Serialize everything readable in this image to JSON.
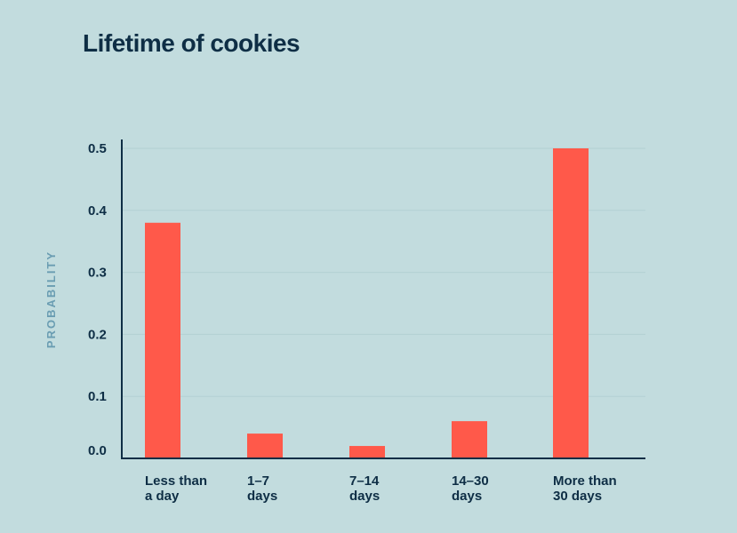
{
  "chart_data": {
    "type": "bar",
    "title": "Lifetime of cookies",
    "xlabel": "",
    "ylabel": "PROBABILITY",
    "categories": [
      [
        "Less than",
        "a day"
      ],
      [
        "1–7",
        "days"
      ],
      [
        "7–14",
        "days"
      ],
      [
        "14–30",
        "days"
      ],
      [
        "More than",
        "30 days"
      ]
    ],
    "values": [
      0.38,
      0.04,
      0.02,
      0.06,
      0.5
    ],
    "ylim": [
      0.0,
      0.5
    ],
    "yticks": [
      "0.0",
      "0.1",
      "0.2",
      "0.3",
      "0.4",
      "0.5"
    ],
    "grid": true,
    "colors": {
      "background": "#c2dcde",
      "bar": "#ff594a",
      "axis": "#0e2e45",
      "grid": "#b3d0d3",
      "ylabel": "#6a9db2"
    }
  }
}
